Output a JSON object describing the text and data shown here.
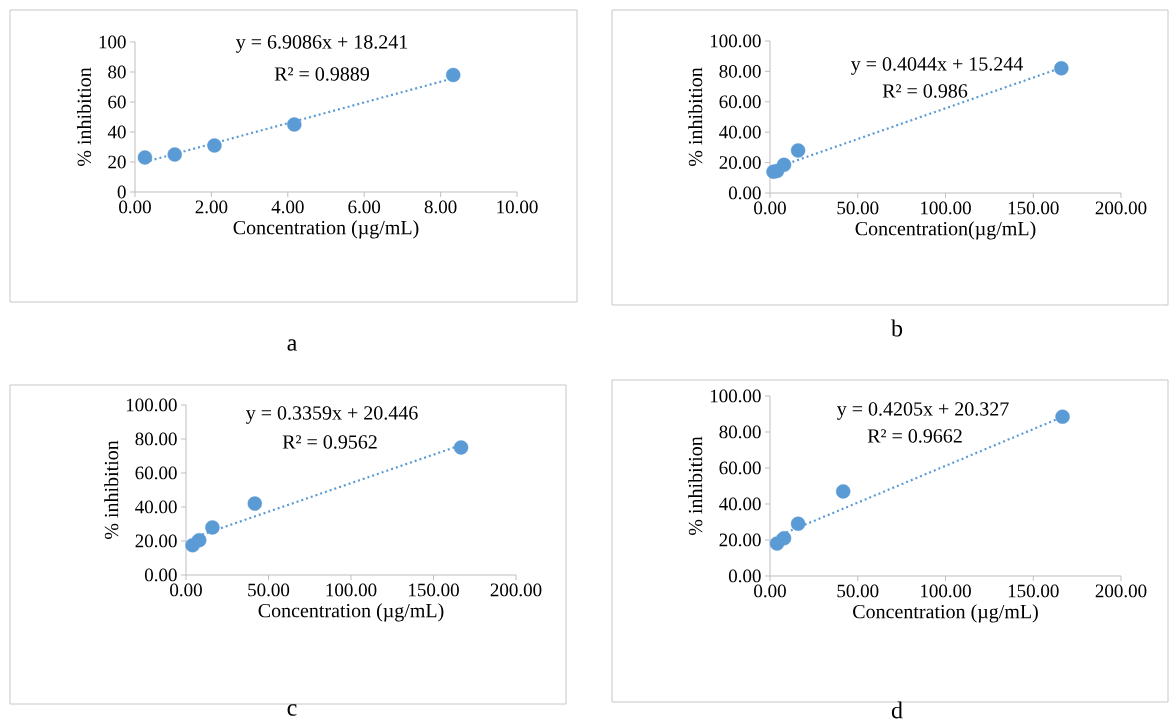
{
  "chart_data": [
    {
      "type": "scatter",
      "xlabel": "Concentration (µg/mL)",
      "ylabel": "% inhibition",
      "annotations": [
        "y = 6.9086x + 18.241",
        "R² = 0.9889",
        "a"
      ],
      "xlim": [
        0,
        10
      ],
      "ylim": [
        0,
        100
      ],
      "xticks": [
        {
          "value": 0,
          "label": "0.00"
        },
        {
          "value": 2,
          "label": "2.00"
        },
        {
          "value": 4,
          "label": "4.00"
        },
        {
          "value": 6,
          "label": "6.00"
        },
        {
          "value": 8,
          "label": "8.00"
        },
        {
          "value": 10,
          "label": "10.00"
        }
      ],
      "yticks": [
        0,
        20,
        40,
        60,
        80,
        100
      ],
      "series": [
        {
          "color": "#5b9bd5",
          "marker": "circle",
          "x": [
            0.26,
            1.04,
            2.08,
            4.17,
            8.33
          ],
          "values": [
            23,
            25,
            31,
            45,
            78
          ]
        },
        {
          "type": "line",
          "color": "#5b9bd5",
          "marker": "none",
          "line_style": "dotted",
          "x": [
            0.26,
            8.33
          ],
          "values": [
            20.0,
            75.8
          ]
        }
      ]
    },
    {
      "type": "scatter",
      "xlabel": "Concentration(µg/mL)",
      "ylabel": "% inhibition",
      "annotations": [
        "y = 0.4044x + 15.244",
        "R² = 0.986",
        "b"
      ],
      "xlim": [
        0,
        200
      ],
      "ylim": [
        0,
        100
      ],
      "xticks": [
        {
          "value": 0,
          "label": "0.00"
        },
        {
          "value": 50,
          "label": "50.00"
        },
        {
          "value": 100,
          "label": "100.00"
        },
        {
          "value": 150,
          "label": "150.00"
        },
        {
          "value": 200,
          "label": "200.00"
        }
      ],
      "yticks": [
        {
          "value": 0,
          "label": "0.00"
        },
        {
          "value": 20,
          "label": "20.00"
        },
        {
          "value": 40,
          "label": "40.00"
        },
        {
          "value": 60,
          "label": "60.00"
        },
        {
          "value": 80,
          "label": "80.00"
        },
        {
          "value": 100,
          "label": "100.00"
        }
      ],
      "series": [
        {
          "color": "#5b9bd5",
          "marker": "circle",
          "x": [
            2,
            4,
            8,
            16,
            166
          ],
          "values": [
            14,
            14.5,
            18.5,
            28,
            82
          ]
        },
        {
          "type": "line",
          "color": "#5b9bd5",
          "marker": "none",
          "line_style": "dotted",
          "x": [
            2,
            166
          ],
          "values": [
            16.1,
            82.4
          ]
        }
      ]
    },
    {
      "type": "scatter",
      "xlabel": "Concentration (µg/mL)",
      "ylabel": "% inhibition",
      "annotations": [
        "y = 0.3359x + 20.446",
        "R² = 0.9562",
        "c"
      ],
      "xlim": [
        0,
        200
      ],
      "ylim": [
        0,
        100
      ],
      "xticks": [
        {
          "value": 0,
          "label": "0.00"
        },
        {
          "value": 50,
          "label": "50.00"
        },
        {
          "value": 100,
          "label": "100.00"
        },
        {
          "value": 150,
          "label": "150.00"
        },
        {
          "value": 200,
          "label": "200.00"
        }
      ],
      "yticks": [
        {
          "value": 0,
          "label": "0.00"
        },
        {
          "value": 20,
          "label": "20.00"
        },
        {
          "value": 40,
          "label": "40.00"
        },
        {
          "value": 60,
          "label": "60.00"
        },
        {
          "value": 80,
          "label": "80.00"
        },
        {
          "value": 100,
          "label": "100.00"
        }
      ],
      "series": [
        {
          "color": "#5b9bd5",
          "marker": "circle",
          "x": [
            4,
            8,
            16,
            41.7,
            166.7
          ],
          "values": [
            17.5,
            20.5,
            28,
            42,
            75
          ]
        },
        {
          "type": "line",
          "color": "#5b9bd5",
          "marker": "none",
          "line_style": "dotted",
          "x": [
            4,
            166.7
          ],
          "values": [
            21.8,
            76.4
          ]
        }
      ]
    },
    {
      "type": "scatter",
      "xlabel": "Concentration (µg/mL)",
      "ylabel": "% inhibition",
      "annotations": [
        "y = 0.4205x + 20.327",
        "R² = 0.9662",
        "d"
      ],
      "xlim": [
        0,
        200
      ],
      "ylim": [
        0,
        100
      ],
      "xticks": [
        {
          "value": 0,
          "label": "0.00"
        },
        {
          "value": 50,
          "label": "50.00"
        },
        {
          "value": 100,
          "label": "100.00"
        },
        {
          "value": 150,
          "label": "150.00"
        },
        {
          "value": 200,
          "label": "200.00"
        }
      ],
      "yticks": [
        {
          "value": 0,
          "label": "0.00"
        },
        {
          "value": 20,
          "label": "20.00"
        },
        {
          "value": 40,
          "label": "40.00"
        },
        {
          "value": 60,
          "label": "60.00"
        },
        {
          "value": 80,
          "label": "80.00"
        },
        {
          "value": 100,
          "label": "100.00"
        }
      ],
      "series": [
        {
          "color": "#5b9bd5",
          "marker": "circle",
          "x": [
            4,
            8,
            16,
            41.7,
            166.7
          ],
          "values": [
            18,
            21,
            29,
            47,
            88.5
          ]
        },
        {
          "type": "line",
          "color": "#5b9bd5",
          "marker": "none",
          "line_style": "dotted",
          "x": [
            4,
            166.7
          ],
          "values": [
            22.0,
            88.4
          ]
        }
      ]
    }
  ]
}
